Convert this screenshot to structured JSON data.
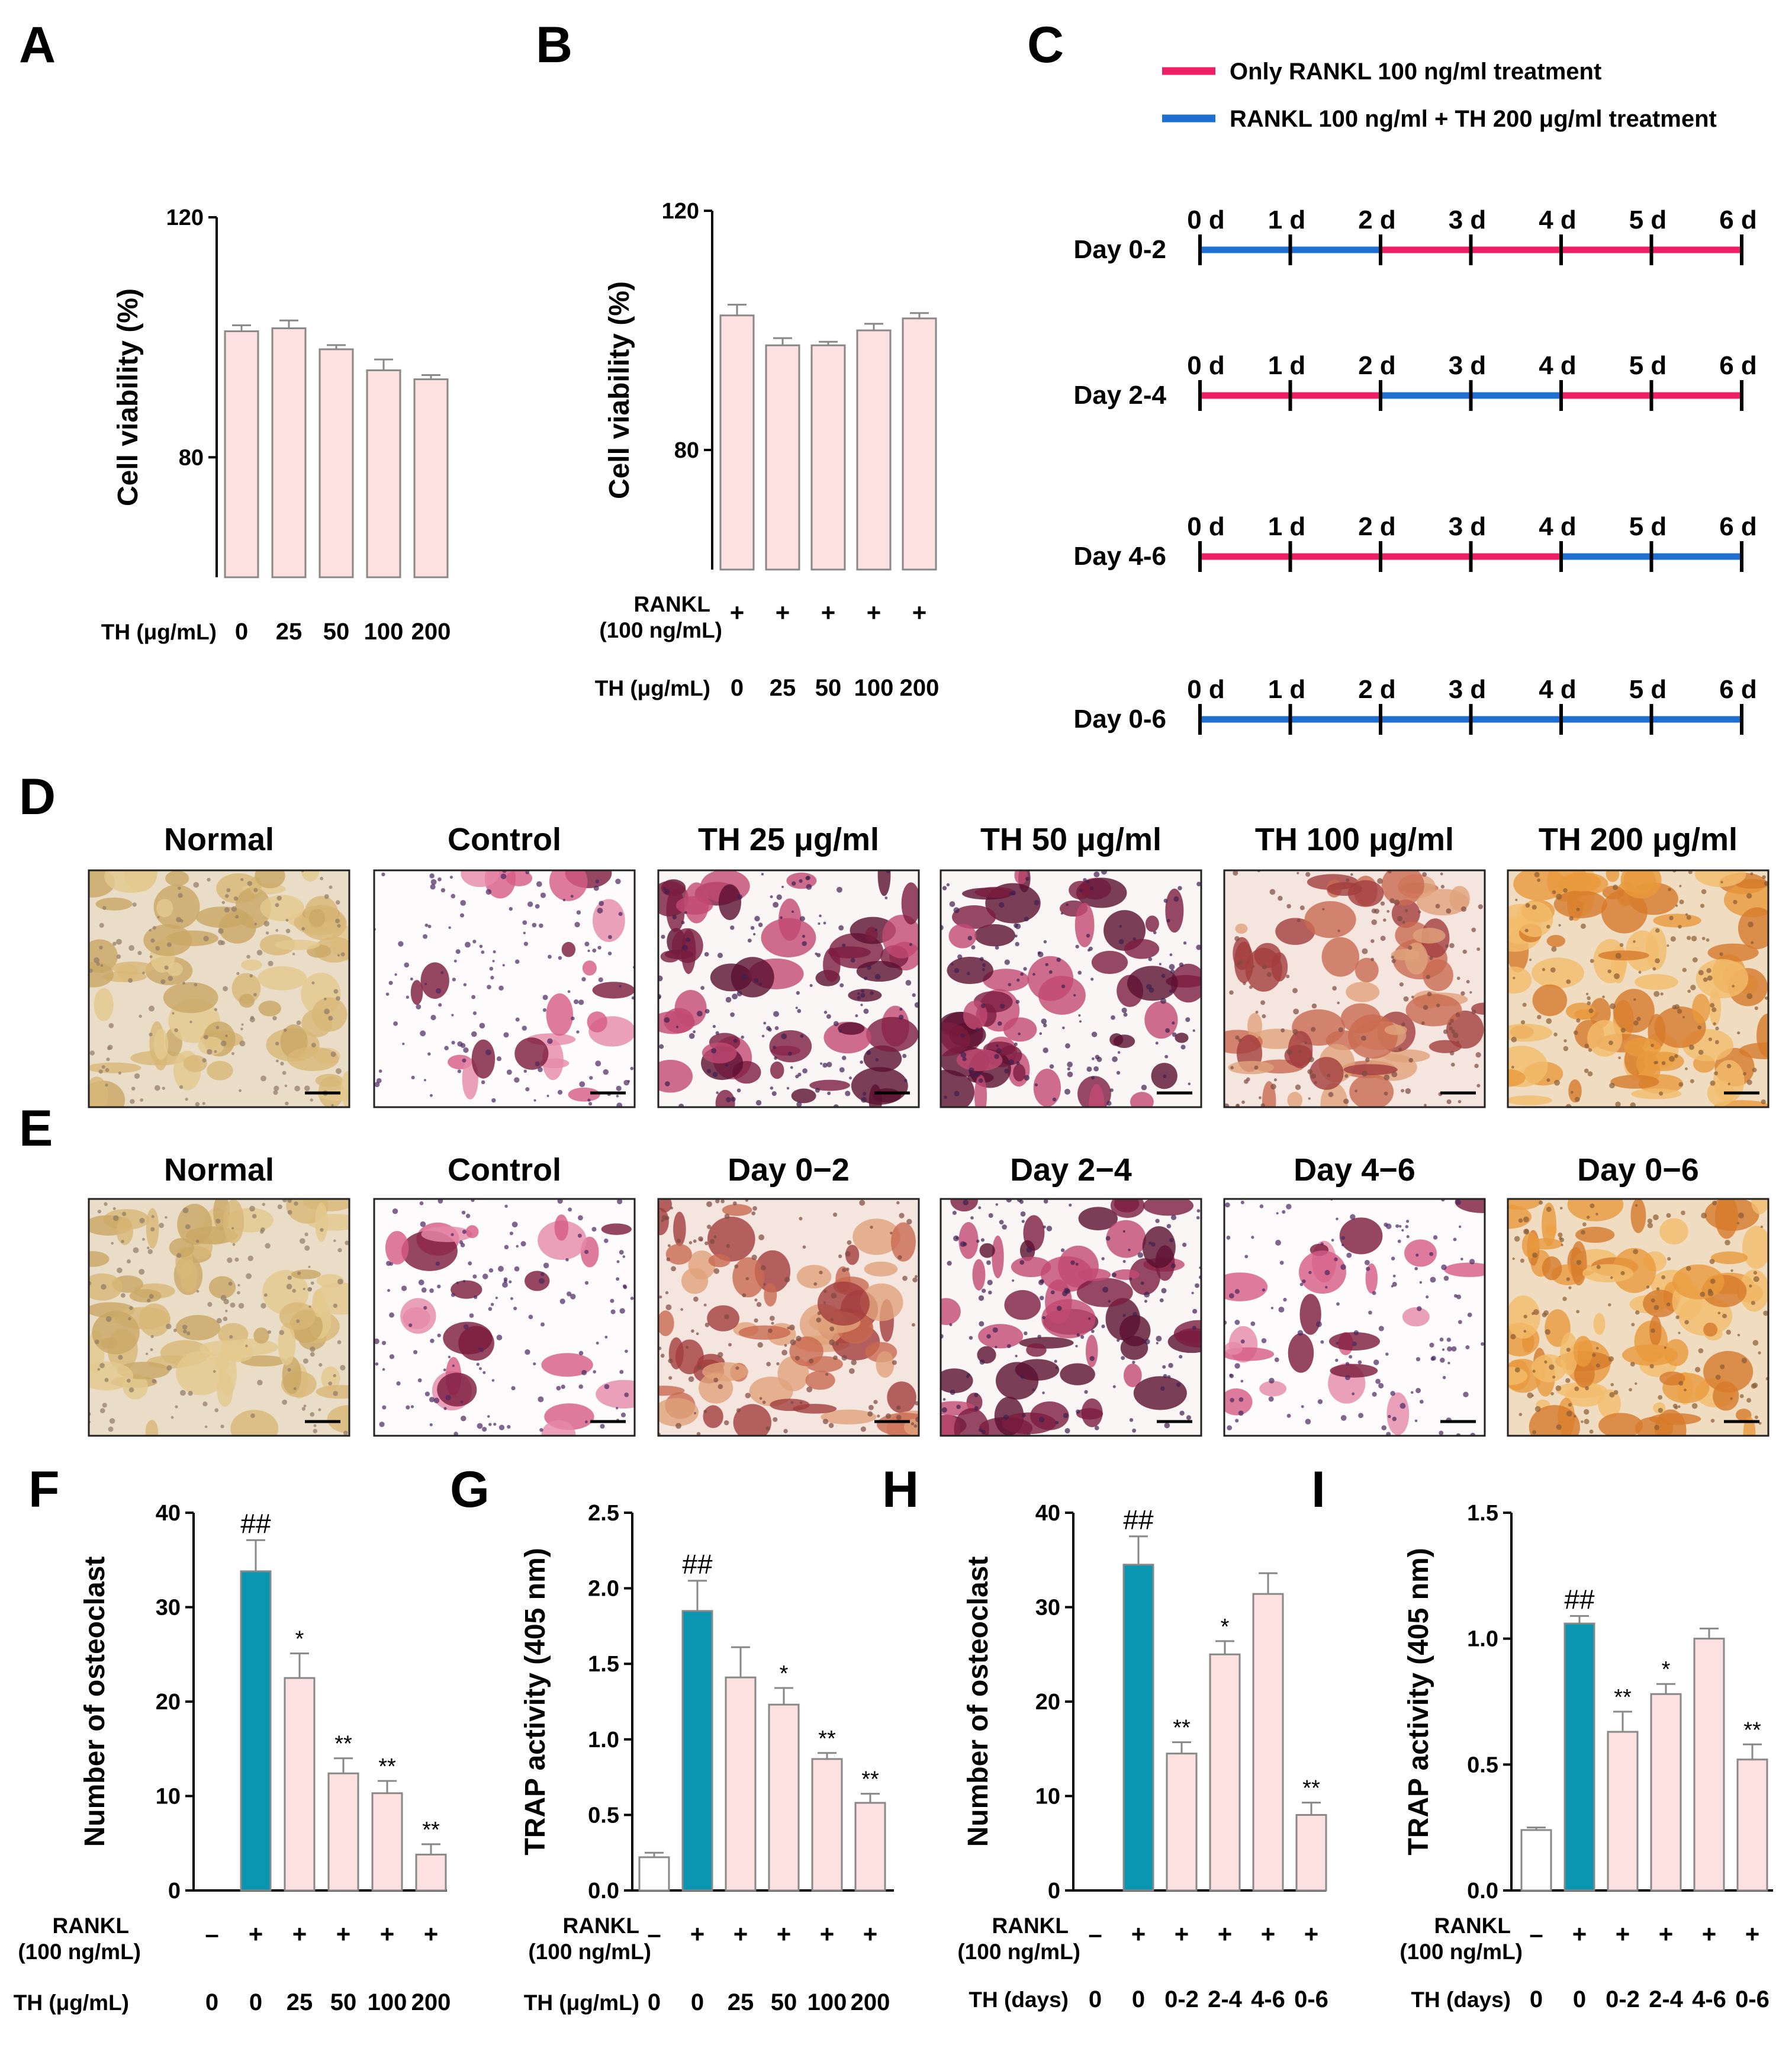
{
  "panels": {
    "A": "A",
    "B": "B",
    "C": "C",
    "D": "D",
    "E": "E",
    "F": "F",
    "G": "G",
    "H": "H",
    "I": "I"
  },
  "colors": {
    "pink_bar": "#fde1e1",
    "teal_bar": "#0a95b0",
    "white_bar": "#ffffff",
    "rankl_line": "#ee1f65",
    "th_line": "#1f6fd1"
  },
  "chart_data": [
    {
      "id": "A",
      "type": "bar",
      "ylabel": "Cell viability (%)",
      "yticks": [
        80,
        120
      ],
      "ylim": [
        60,
        120
      ],
      "row_labels": [
        "TH (μg/mL)"
      ],
      "categories": [
        "0",
        "25",
        "50",
        "100",
        "200"
      ],
      "values": [
        101,
        101.5,
        98,
        94.5,
        93
      ],
      "errors": [
        1,
        1.3,
        0.7,
        1.8,
        0.7
      ],
      "fills": [
        "pink",
        "pink",
        "pink",
        "pink",
        "pink"
      ],
      "sig": [
        "",
        "",
        "",
        "",
        ""
      ]
    },
    {
      "id": "B",
      "type": "bar",
      "ylabel": "Cell viability (%)",
      "yticks": [
        80,
        120
      ],
      "ylim": [
        60,
        120
      ],
      "row_labels": [
        "RANKL",
        "(100 ng/mL)",
        "TH (μg/mL)"
      ],
      "rankl": [
        "+",
        "+",
        "+",
        "+",
        "+"
      ],
      "categories": [
        "0",
        "25",
        "50",
        "100",
        "200"
      ],
      "values": [
        102.5,
        97.5,
        97.5,
        100,
        102
      ],
      "errors": [
        1.8,
        1.2,
        0.6,
        1.1,
        0.9
      ],
      "fills": [
        "pink",
        "pink",
        "pink",
        "pink",
        "pink"
      ],
      "sig": [
        "",
        "",
        "",
        "",
        ""
      ]
    },
    {
      "id": "F",
      "type": "bar",
      "ylabel": "Number of osteoclast",
      "yticks": [
        "0",
        "10",
        "20",
        "30",
        "40"
      ],
      "ylim": [
        0,
        40
      ],
      "row_labels": [
        "RANKL",
        "(100 ng/mL)",
        "TH (μg/mL)"
      ],
      "rankl": [
        "–",
        "+",
        "+",
        "+",
        "+",
        "+"
      ],
      "categories": [
        "0",
        "0",
        "25",
        "50",
        "100",
        "200"
      ],
      "values": [
        0,
        33.8,
        22.5,
        12.4,
        10.3,
        3.8
      ],
      "errors": [
        0,
        3.3,
        2.6,
        1.6,
        1.3,
        1.1
      ],
      "fills": [
        "white",
        "teal",
        "pink",
        "pink",
        "pink",
        "pink"
      ],
      "sig": [
        "",
        "##",
        "*",
        "**",
        "**",
        "**"
      ]
    },
    {
      "id": "G",
      "type": "bar",
      "ylabel": "TRAP activity (405 nm)",
      "yticks": [
        "0.0",
        "0.5",
        "1.0",
        "1.5",
        "2.0",
        "2.5"
      ],
      "ylim": [
        0,
        2.5
      ],
      "row_labels": [
        "RANKL",
        "(100 ng/mL)",
        "TH (μg/mL)"
      ],
      "rankl": [
        "–",
        "+",
        "+",
        "+",
        "+",
        "+"
      ],
      "categories": [
        "0",
        "0",
        "25",
        "50",
        "100",
        "200"
      ],
      "values": [
        0.22,
        1.85,
        1.41,
        1.23,
        0.87,
        0.58
      ],
      "errors": [
        0.03,
        0.2,
        0.2,
        0.11,
        0.04,
        0.06
      ],
      "fills": [
        "white",
        "teal",
        "pink",
        "pink",
        "pink",
        "pink"
      ],
      "sig": [
        "",
        "##",
        "",
        "*",
        "**",
        "**"
      ]
    },
    {
      "id": "H",
      "type": "bar",
      "ylabel": "Number of osteoclast",
      "yticks": [
        "0",
        "10",
        "20",
        "30",
        "40"
      ],
      "ylim": [
        0,
        40
      ],
      "row_labels": [
        "RANKL",
        "(100 ng/mL)",
        "TH (days)"
      ],
      "rankl": [
        "–",
        "+",
        "+",
        "+",
        "+",
        "+"
      ],
      "categories": [
        "0",
        "0",
        "0-2",
        "2-4",
        "4-6",
        "0-6"
      ],
      "values": [
        0,
        34.5,
        14.5,
        25,
        31.4,
        8
      ],
      "errors": [
        0,
        3,
        1.2,
        1.4,
        2.2,
        1.3
      ],
      "fills": [
        "white",
        "teal",
        "pink",
        "pink",
        "pink",
        "pink"
      ],
      "sig": [
        "",
        "##",
        "**",
        "*",
        "",
        "**"
      ]
    },
    {
      "id": "I",
      "type": "bar",
      "ylabel": "TRAP activity (405 nm)",
      "yticks": [
        "0.0",
        "0.5",
        "1.0",
        "1.5"
      ],
      "ylim": [
        0,
        1.5
      ],
      "row_labels": [
        "RANKL",
        "(100 ng/mL)",
        "TH (days)"
      ],
      "rankl": [
        "–",
        "+",
        "+",
        "+",
        "+",
        "+"
      ],
      "categories": [
        "0",
        "0",
        "0-2",
        "2-4",
        "4-6",
        "0-6"
      ],
      "values": [
        0.24,
        1.06,
        0.63,
        0.78,
        1.0,
        0.52
      ],
      "errors": [
        0.01,
        0.03,
        0.08,
        0.04,
        0.04,
        0.06
      ],
      "fills": [
        "white",
        "teal",
        "pink",
        "pink",
        "pink",
        "pink"
      ],
      "sig": [
        "",
        "##",
        "**",
        "*",
        "",
        "**"
      ]
    },
    {
      "id": "C",
      "type": "timeline",
      "legend": [
        "Only RANKL 100 ng/ml treatment",
        "RANKL 100 ng/ml + TH 200 μg/ml treatment"
      ],
      "day_labels": [
        "0 d",
        "1 d",
        "2 d",
        "3 d",
        "4 d",
        "5 d",
        "6 d"
      ],
      "rows": [
        {
          "label": "Day 0-2",
          "th_from": 0,
          "th_to": 2
        },
        {
          "label": "Day 2-4",
          "th_from": 2,
          "th_to": 4
        },
        {
          "label": "Day 4-6",
          "th_from": 4,
          "th_to": 6
        },
        {
          "label": "Day 0-6",
          "th_from": 0,
          "th_to": 6
        }
      ]
    }
  ],
  "micrographs": {
    "D": [
      {
        "title": "Normal",
        "stain": "normal"
      },
      {
        "title": "Control",
        "stain": "control"
      },
      {
        "title": "TH 25 μg/ml",
        "stain": "dense"
      },
      {
        "title": "TH 50 μg/ml",
        "stain": "dense"
      },
      {
        "title": "TH 100 μg/ml",
        "stain": "mixed"
      },
      {
        "title": "TH 200 μg/ml",
        "stain": "orange"
      }
    ],
    "E": [
      {
        "title": "Normal",
        "stain": "normal"
      },
      {
        "title": "Control",
        "stain": "control"
      },
      {
        "title": "Day 0−2",
        "stain": "mixed"
      },
      {
        "title": "Day 2−4",
        "stain": "dense"
      },
      {
        "title": "Day 4−6",
        "stain": "control"
      },
      {
        "title": "Day 0−6",
        "stain": "orange"
      }
    ]
  }
}
